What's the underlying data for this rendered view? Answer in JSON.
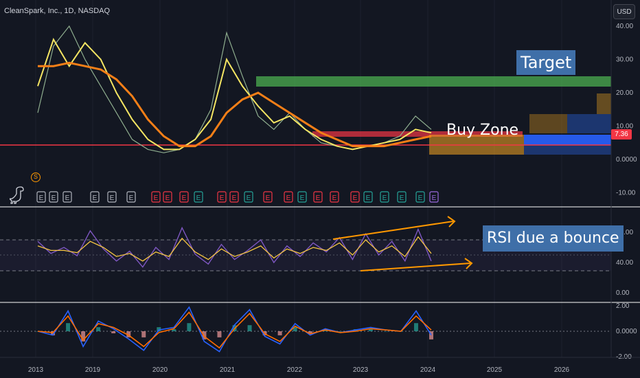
{
  "header": {
    "symbol_line": "CleanSpark, Inc., 1D, NASDAQ",
    "currency_button": "USD",
    "dividend_badge": "S"
  },
  "annotations": {
    "target": "Target",
    "buy_zone": "Buy Zone",
    "rsi_note": "RSI due a bounce"
  },
  "last_price_badge": "7.36",
  "colors": {
    "background": "#131722",
    "price": "#8fae8f",
    "ma_fast": "#f5e663",
    "ma_slow": "#f57f17",
    "target_zone": "#4caf50",
    "buy_zone": "#f6a623",
    "support_line": "#f23645",
    "rsi_line": "#7e57c2",
    "rsi_ma": "#f5c542",
    "macd": "#2962ff",
    "signal": "#ff6d00"
  },
  "earnings_marker_label": "E",
  "chart_data": [
    {
      "type": "line",
      "pane": "price",
      "x_ticks": [
        "2013",
        "2019",
        "2020",
        "2021",
        "2022",
        "2023",
        "2024",
        "2025",
        "2026"
      ],
      "y_ticks": [
        "40.00",
        "30.00",
        "20.00",
        "10.00",
        "0.0000",
        "-10.00"
      ],
      "ylim": [
        -12,
        45
      ],
      "series": [
        {
          "values": [
            14,
            34,
            40,
            30,
            22,
            14,
            6,
            3,
            2,
            3,
            6,
            15,
            38,
            25,
            13,
            9,
            14,
            9,
            5,
            4,
            3,
            4,
            5,
            7,
            13,
            9
          ]
        },
        {
          "values": [
            22,
            36,
            28,
            35,
            30,
            20,
            12,
            6,
            3,
            3,
            6,
            12,
            30,
            22,
            16,
            11,
            13,
            9,
            6,
            4,
            3,
            4,
            5,
            6,
            9,
            8
          ]
        },
        {
          "values": [
            28,
            28,
            29,
            28,
            27,
            24,
            19,
            12,
            7,
            4,
            4,
            7,
            14,
            18,
            20,
            17,
            14,
            11,
            8,
            6,
            4,
            4,
            4,
            5,
            6,
            7
          ]
        }
      ],
      "last_value": 7.36,
      "zones": {
        "target": [
          22.5,
          25.5
        ],
        "buy": [
          1.2,
          8.2
        ],
        "support_line": 3.8
      }
    },
    {
      "type": "line",
      "pane": "rsi",
      "y_ticks": [
        "80.00",
        "40.00",
        "0.00"
      ],
      "ylim": [
        0,
        100
      ],
      "bands": [
        30,
        50,
        70
      ],
      "series": [
        {
          "values": [
            68,
            52,
            60,
            49,
            82,
            58,
            42,
            55,
            34,
            60,
            44,
            86,
            51,
            38,
            64,
            44,
            56,
            70,
            40,
            62,
            48,
            66,
            54,
            73,
            44,
            78,
            50,
            68,
            42,
            84,
            42
          ]
        },
        {
          "values": [
            62,
            56,
            56,
            53,
            68,
            60,
            48,
            52,
            42,
            54,
            48,
            72,
            54,
            44,
            58,
            48,
            54,
            62,
            46,
            58,
            52,
            60,
            56,
            66,
            50,
            70,
            54,
            62,
            48,
            74,
            52
          ]
        }
      ]
    },
    {
      "type": "line",
      "pane": "macd",
      "y_ticks": [
        "2.00",
        "0.0000",
        "-2.00"
      ],
      "ylim": [
        -2.2,
        2.2
      ],
      "series": [
        {
          "values": [
            0,
            -0.3,
            1.6,
            -1.2,
            0.8,
            0.2,
            -0.6,
            -1.5,
            0.1,
            0.3,
            1.9,
            -0.8,
            -1.6,
            0.5,
            1.7,
            -0.4,
            -1.0,
            0.6,
            -0.3,
            0.2,
            -0.1,
            0.1,
            0.3,
            0.1,
            0.0,
            1.6,
            -0.3
          ]
        },
        {
          "values": [
            0,
            -0.1,
            1.2,
            -0.7,
            0.6,
            0.3,
            -0.3,
            -1.2,
            -0.1,
            0.2,
            1.5,
            -0.4,
            -1.3,
            0.2,
            1.4,
            -0.2,
            -0.8,
            0.4,
            -0.2,
            0.1,
            -0.1,
            0.0,
            0.2,
            0.1,
            0.0,
            1.2,
            0.1
          ]
        }
      ]
    }
  ]
}
